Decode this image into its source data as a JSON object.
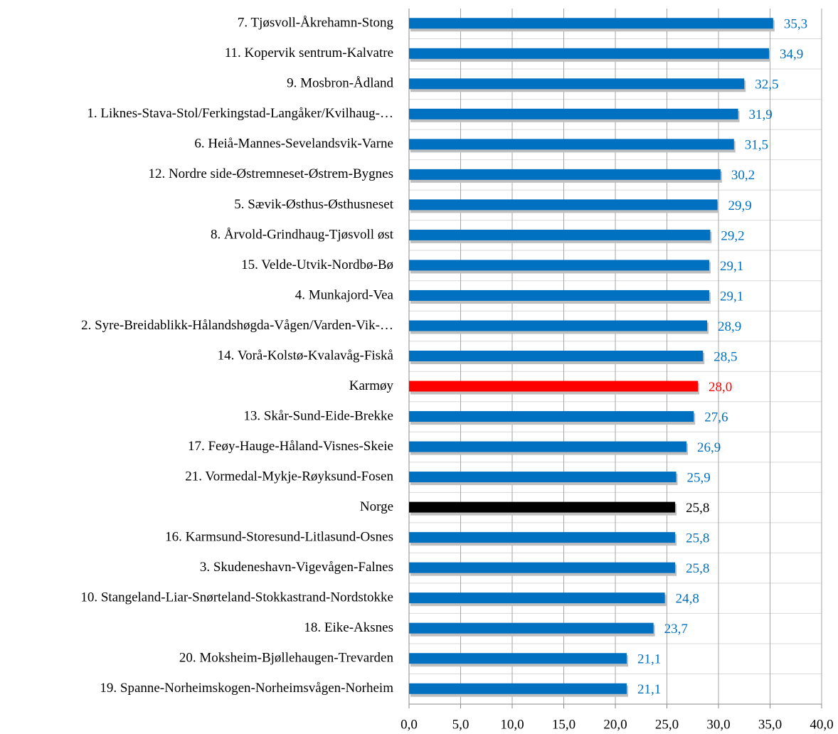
{
  "chart_data": {
    "type": "hbar",
    "categories": [
      "7. Tjøsvoll-Åkrehamn-Stong",
      "11. Kopervik sentrum-Kalvatre",
      "9. Mosbron-Ådland",
      "1. Liknes-Stava-Stol/Ferkingstad-Langåker/Kvilhaug-…",
      "6. Heiå-Mannes-Sevelandsvik-Varne",
      "12. Nordre side-Østremneset-Østrem-Bygnes",
      "5. Sævik-Østhus-Østhusneset",
      "8. Årvold-Grindhaug-Tjøsvoll øst",
      "15. Velde-Utvik-Nordbø-Bø",
      "4. Munkajord-Vea",
      "2. Syre-Breidablikk-Hålandshøgda-Vågen/Varden-Vik-…",
      "14. Vorå-Kolstø-Kvalavåg-Fiskå",
      "Karmøy",
      "13. Skår-Sund-Eide-Brekke",
      "17. Feøy-Hauge-Håland-Visnes-Skeie",
      "21. Vormedal-Mykje-Røyksund-Fosen",
      "Norge",
      "16. Karmsund-Storesund-Litlasund-Osnes",
      "3. Skudeneshavn-Vigevågen-Falnes",
      "10. Stangeland-Liar-Snørteland-Stokkastrand-Nordstokke",
      "18. Eike-Aksnes",
      "20. Moksheim-Bjøllehaugen-Trevarden",
      "19. Spanne-Norheimskogen-Norheimsvågen-Norheim"
    ],
    "values": [
      35.3,
      34.9,
      32.5,
      31.9,
      31.5,
      30.2,
      29.9,
      29.2,
      29.1,
      29.1,
      28.9,
      28.5,
      28.0,
      27.6,
      26.9,
      25.9,
      25.8,
      25.8,
      25.8,
      24.8,
      23.7,
      21.1,
      21.1
    ],
    "value_labels": [
      "35,3",
      "34,9",
      "32,5",
      "31,9",
      "31,5",
      "30,2",
      "29,9",
      "29,2",
      "29,1",
      "29,1",
      "28,9",
      "28,5",
      "28,0",
      "27,6",
      "26,9",
      "25,9",
      "25,8",
      "25,8",
      "25,8",
      "24,8",
      "23,7",
      "21,1",
      "21,1"
    ],
    "colors": [
      "#0070c0",
      "#0070c0",
      "#0070c0",
      "#0070c0",
      "#0070c0",
      "#0070c0",
      "#0070c0",
      "#0070c0",
      "#0070c0",
      "#0070c0",
      "#0070c0",
      "#0070c0",
      "#ff0000",
      "#0070c0",
      "#0070c0",
      "#0070c0",
      "#000000",
      "#0070c0",
      "#0070c0",
      "#0070c0",
      "#0070c0",
      "#0070c0",
      "#0070c0"
    ],
    "xlim": [
      0,
      40
    ],
    "xticks": [
      {
        "value": 0,
        "label": "0,0"
      },
      {
        "value": 5,
        "label": "5,0"
      },
      {
        "value": 10,
        "label": "10,0"
      },
      {
        "value": 15,
        "label": "15,0"
      },
      {
        "value": 20,
        "label": "20,0"
      },
      {
        "value": 25,
        "label": "25,0"
      },
      {
        "value": 30,
        "label": "30,0"
      },
      {
        "value": 35,
        "label": "35,0"
      },
      {
        "value": 40,
        "label": "40,0"
      }
    ],
    "grid": true
  }
}
